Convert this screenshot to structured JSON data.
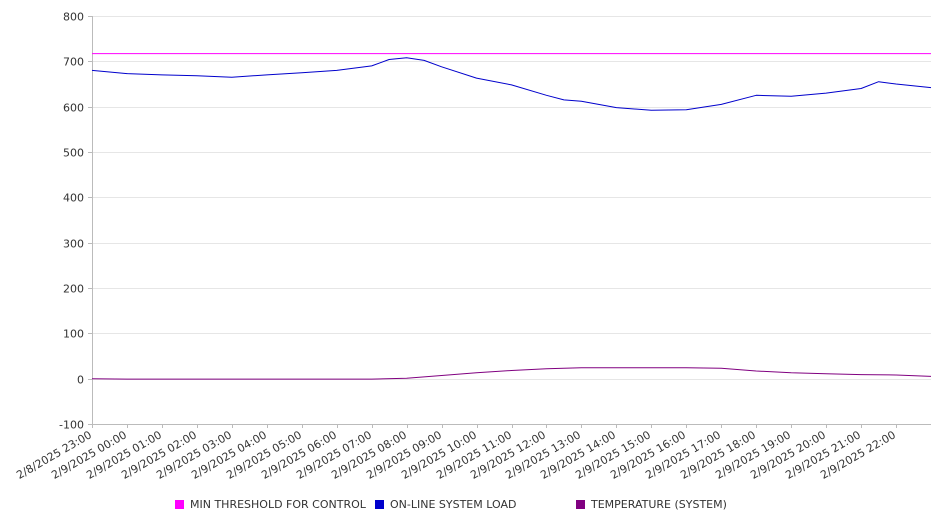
{
  "chart_data": {
    "type": "line",
    "y_ticks": [
      800,
      700,
      600,
      500,
      400,
      300,
      200,
      100,
      0,
      -100
    ],
    "ylim": [
      -100,
      800
    ],
    "x_tick_labels": [
      "2/8/2025 23:00",
      "2/9/2025 00:00",
      "2/9/2025 01:00",
      "2/9/2025 02:00",
      "2/9/2025 03:00",
      "2/9/2025 04:00",
      "2/9/2025 05:00",
      "2/9/2025 06:00",
      "2/9/2025 07:00",
      "2/9/2025 08:00",
      "2/9/2025 09:00",
      "2/9/2025 10:00",
      "2/9/2025 11:00",
      "2/9/2025 12:00",
      "2/9/2025 13:00",
      "2/9/2025 14:00",
      "2/9/2025 15:00",
      "2/9/2025 16:00",
      "2/9/2025 17:00",
      "2/9/2025 18:00",
      "2/9/2025 19:00",
      "2/9/2025 20:00",
      "2/9/2025 21:00",
      "2/9/2025 22:00"
    ],
    "x_range": [
      "2/8/2025 23:00",
      "2/9/2025 23:00"
    ],
    "grid": "horizontal",
    "legend_position": "bottom",
    "series": [
      {
        "name": "MIN THRESHOLD FOR CONTROL",
        "color": "#ff00ff",
        "x": [
          "2/8/2025 23:00",
          "2/9/2025 23:00"
        ],
        "y": [
          717,
          717
        ]
      },
      {
        "name": "ON-LINE SYSTEM LOAD",
        "color": "#0000cc",
        "x": [
          "2/8/2025 23:00",
          "2/9/2025 00:00",
          "2/9/2025 01:00",
          "2/9/2025 02:00",
          "2/9/2025 03:00",
          "2/9/2025 04:00",
          "2/9/2025 05:00",
          "2/9/2025 06:00",
          "2/9/2025 07:00",
          "2/9/2025 07:30",
          "2/9/2025 08:00",
          "2/9/2025 08:30",
          "2/9/2025 09:00",
          "2/9/2025 10:00",
          "2/9/2025 11:00",
          "2/9/2025 12:00",
          "2/9/2025 12:30",
          "2/9/2025 13:00",
          "2/9/2025 14:00",
          "2/9/2025 15:00",
          "2/9/2025 16:00",
          "2/9/2025 17:00",
          "2/9/2025 18:00",
          "2/9/2025 19:00",
          "2/9/2025 20:00",
          "2/9/2025 21:00",
          "2/9/2025 21:30",
          "2/9/2025 22:00",
          "2/9/2025 23:00"
        ],
        "y": [
          680,
          673,
          670,
          668,
          665,
          670,
          675,
          680,
          690,
          704,
          708,
          702,
          688,
          663,
          648,
          625,
          615,
          612,
          598,
          592,
          593,
          605,
          625,
          623,
          630,
          640,
          655,
          650,
          642
        ]
      },
      {
        "name": "TEMPERATURE (SYSTEM)",
        "color": "#800080",
        "x": [
          "2/8/2025 23:00",
          "2/9/2025 00:00",
          "2/9/2025 01:00",
          "2/9/2025 02:00",
          "2/9/2025 03:00",
          "2/9/2025 04:00",
          "2/9/2025 05:00",
          "2/9/2025 06:00",
          "2/9/2025 07:00",
          "2/9/2025 08:00",
          "2/9/2025 09:00",
          "2/9/2025 10:00",
          "2/9/2025 11:00",
          "2/9/2025 12:00",
          "2/9/2025 13:00",
          "2/9/2025 14:00",
          "2/9/2025 15:00",
          "2/9/2025 16:00",
          "2/9/2025 17:00",
          "2/9/2025 18:00",
          "2/9/2025 19:00",
          "2/9/2025 20:00",
          "2/9/2025 21:00",
          "2/9/2025 22:00",
          "2/9/2025 23:00"
        ],
        "y": [
          0,
          -1,
          -1,
          -1,
          -1,
          -1,
          -1,
          -1,
          -1,
          1,
          7,
          13,
          18,
          22,
          24,
          24,
          24,
          24,
          23,
          17,
          13,
          11,
          9,
          8,
          5
        ]
      }
    ]
  }
}
